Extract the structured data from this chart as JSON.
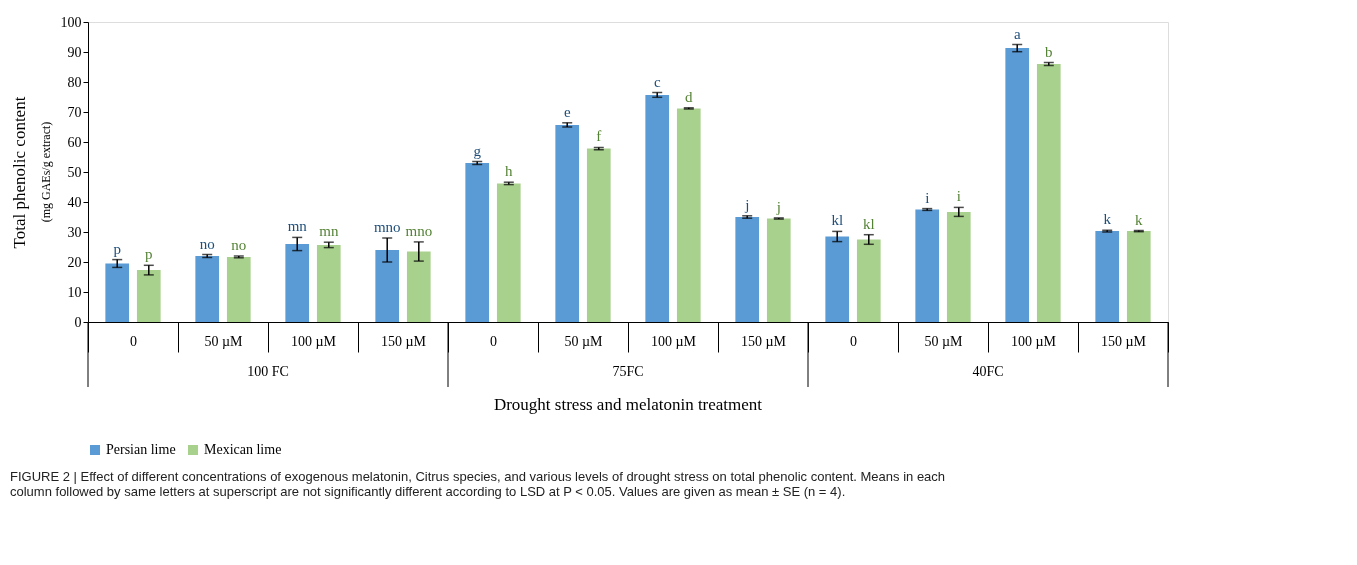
{
  "chart_data": {
    "type": "bar",
    "xlabel": "Drought stress and melatonin treatment",
    "ylabel": "Total phenolic content",
    "subtitle": "(mg GAEs/g extract)",
    "categories": [
      "0",
      "50 µM",
      "100 µM",
      "150 µM",
      "0",
      "50 µM",
      "100 µM",
      "150 µM",
      "0",
      "50 µM",
      "100 µM",
      "150 µM"
    ],
    "series": [
      {
        "name": "Persian lime",
        "color": "#5b9bd5",
        "values": [
          19.5,
          22,
          26,
          24,
          53,
          65.7,
          75.7,
          35,
          28.5,
          37.5,
          91.3,
          30.3
        ],
        "errors": [
          1.3,
          0.5,
          2.2,
          4,
          0.5,
          0.7,
          0.8,
          0.4,
          1.7,
          0.3,
          1.2,
          0.3
        ],
        "value_labels": [
          "p",
          "no",
          "mn",
          "mno",
          "g",
          "e",
          "c",
          "j",
          "kl",
          "i",
          "a",
          "k"
        ]
      },
      {
        "name": "Mexican lime",
        "color": "#a9d18e",
        "values": [
          17.3,
          21.7,
          25.7,
          23.5,
          46.2,
          57.8,
          71.2,
          34.5,
          27.5,
          36.7,
          86,
          30.3
        ],
        "errors": [
          1.6,
          0.3,
          0.9,
          3.2,
          0.4,
          0.4,
          0.2,
          0.2,
          1.6,
          1.5,
          0.5,
          0.2
        ],
        "value_labels": [
          "p",
          "no",
          "mn",
          "mno",
          "h",
          "f",
          "d",
          "j",
          "kl",
          "i",
          "b",
          "k"
        ]
      }
    ],
    "ylim": [
      0,
      100
    ],
    "yticks": [
      0,
      10,
      20,
      30,
      40,
      50,
      60,
      70,
      80,
      90,
      100
    ],
    "grid": false,
    "legend": "bottom",
    "annotations": [
      "100 FC",
      "75FC",
      "40FC",
      "FIGURE 2 | Effect of different concentrations of exogenous melatonin, Citrus species, and various levels of drought stress on total phenolic content. Means in each\ncolumn followed by same letters at superscript are not significantly different according to LSD at P < 0.05. Values are given as mean ± SE (n = 4)."
    ]
  }
}
